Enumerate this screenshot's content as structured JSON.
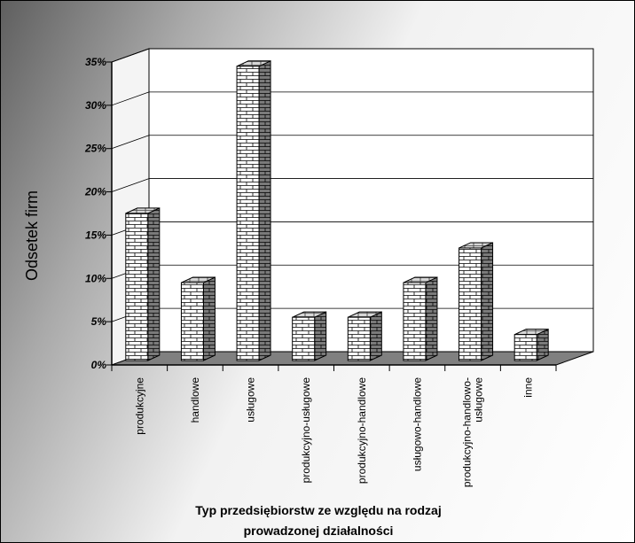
{
  "chart_data": {
    "type": "bar",
    "categories": [
      [
        "produkcyjne"
      ],
      [
        "handlowe"
      ],
      [
        "usługowe"
      ],
      [
        "produkcyjno-usługowe"
      ],
      [
        "produkcyjno-handlowe"
      ],
      [
        "usługowo-handlowe"
      ],
      [
        "produkcyjno-handlowo-",
        "usługowe"
      ],
      [
        "inne"
      ]
    ],
    "values": [
      17,
      9,
      34,
      5,
      5,
      9,
      13,
      3
    ],
    "yticks": [
      "0%",
      "5%",
      "10%",
      "15%",
      "20%",
      "25%",
      "30%",
      "35%"
    ],
    "ylim": [
      0,
      35
    ],
    "ylabel": "Odsetek firm",
    "xlabel": [
      "Typ przedsiębiorstw ze względu na rodzaj",
      "prowadzonej  działalności"
    ],
    "grid": true,
    "bar_style": "3d-brick",
    "colors": {
      "front": "#ffffff",
      "side": "#7a7a7a",
      "top": "#d6d6d6",
      "floor": "#808080",
      "mortar": "#000000"
    }
  }
}
